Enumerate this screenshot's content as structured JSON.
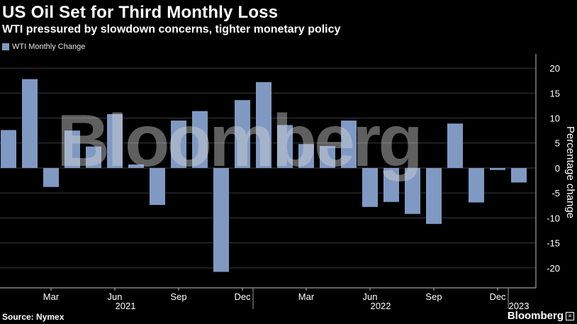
{
  "title": "US Oil Set for Third Monthly Loss",
  "subtitle": "WTI pressured by slowdown concerns, tighter monetary policy",
  "source": "Source: Nymex",
  "logo": "Bloomberg",
  "watermark": "Bloomberg",
  "colors": {
    "bar": "#7f99c2",
    "background": "#000000",
    "grid": "#3a3a3a"
  },
  "chart_data": {
    "type": "bar",
    "categories": [
      "2021-01",
      "2021-02",
      "2021-03",
      "2021-04",
      "2021-05",
      "2021-06",
      "2021-07",
      "2021-08",
      "2021-09",
      "2021-10",
      "2021-11",
      "2021-12",
      "2022-01",
      "2022-02",
      "2022-03",
      "2022-04",
      "2022-05",
      "2022-06",
      "2022-07",
      "2022-08",
      "2022-09",
      "2022-10",
      "2022-11",
      "2022-12",
      "2023-01"
    ],
    "series": [
      {
        "name": "WTI Monthly Change",
        "values": [
          7.6,
          17.8,
          -3.8,
          7.5,
          4.3,
          10.8,
          0.7,
          -7.4,
          9.5,
          11.4,
          -20.8,
          13.6,
          17.2,
          8.6,
          4.8,
          4.4,
          9.5,
          -7.8,
          -6.8,
          -9.2,
          -11.2,
          8.9,
          -6.9,
          -0.4,
          -2.9
        ]
      }
    ],
    "legend": {
      "position": "top-left",
      "entries": [
        "WTI Monthly Change"
      ]
    },
    "ylabel": "Percentage change",
    "ylim": [
      -24,
      22
    ],
    "yticks": [
      20,
      15,
      10,
      5,
      0,
      -5,
      -10,
      -15,
      -20
    ],
    "ytick_labels": [
      "20",
      "15",
      "10",
      "5",
      "0",
      "-5",
      "-10",
      "-15",
      "-20"
    ],
    "xtick_labels": [
      "Mar",
      "Jun",
      "Sep",
      "Dec",
      "Mar",
      "Jun",
      "Sep",
      "Dec"
    ],
    "xtick_indices": [
      2,
      5,
      8,
      11,
      14,
      17,
      20,
      23
    ],
    "year_labels": [
      {
        "label": "2021",
        "center_index": 5.5
      },
      {
        "label": "2022",
        "center_index": 17.5
      },
      {
        "label": "2023",
        "center_index": 24
      }
    ],
    "year_dividers": [
      11.5,
      23.5
    ],
    "grid": true,
    "yaxis_position": "right"
  }
}
